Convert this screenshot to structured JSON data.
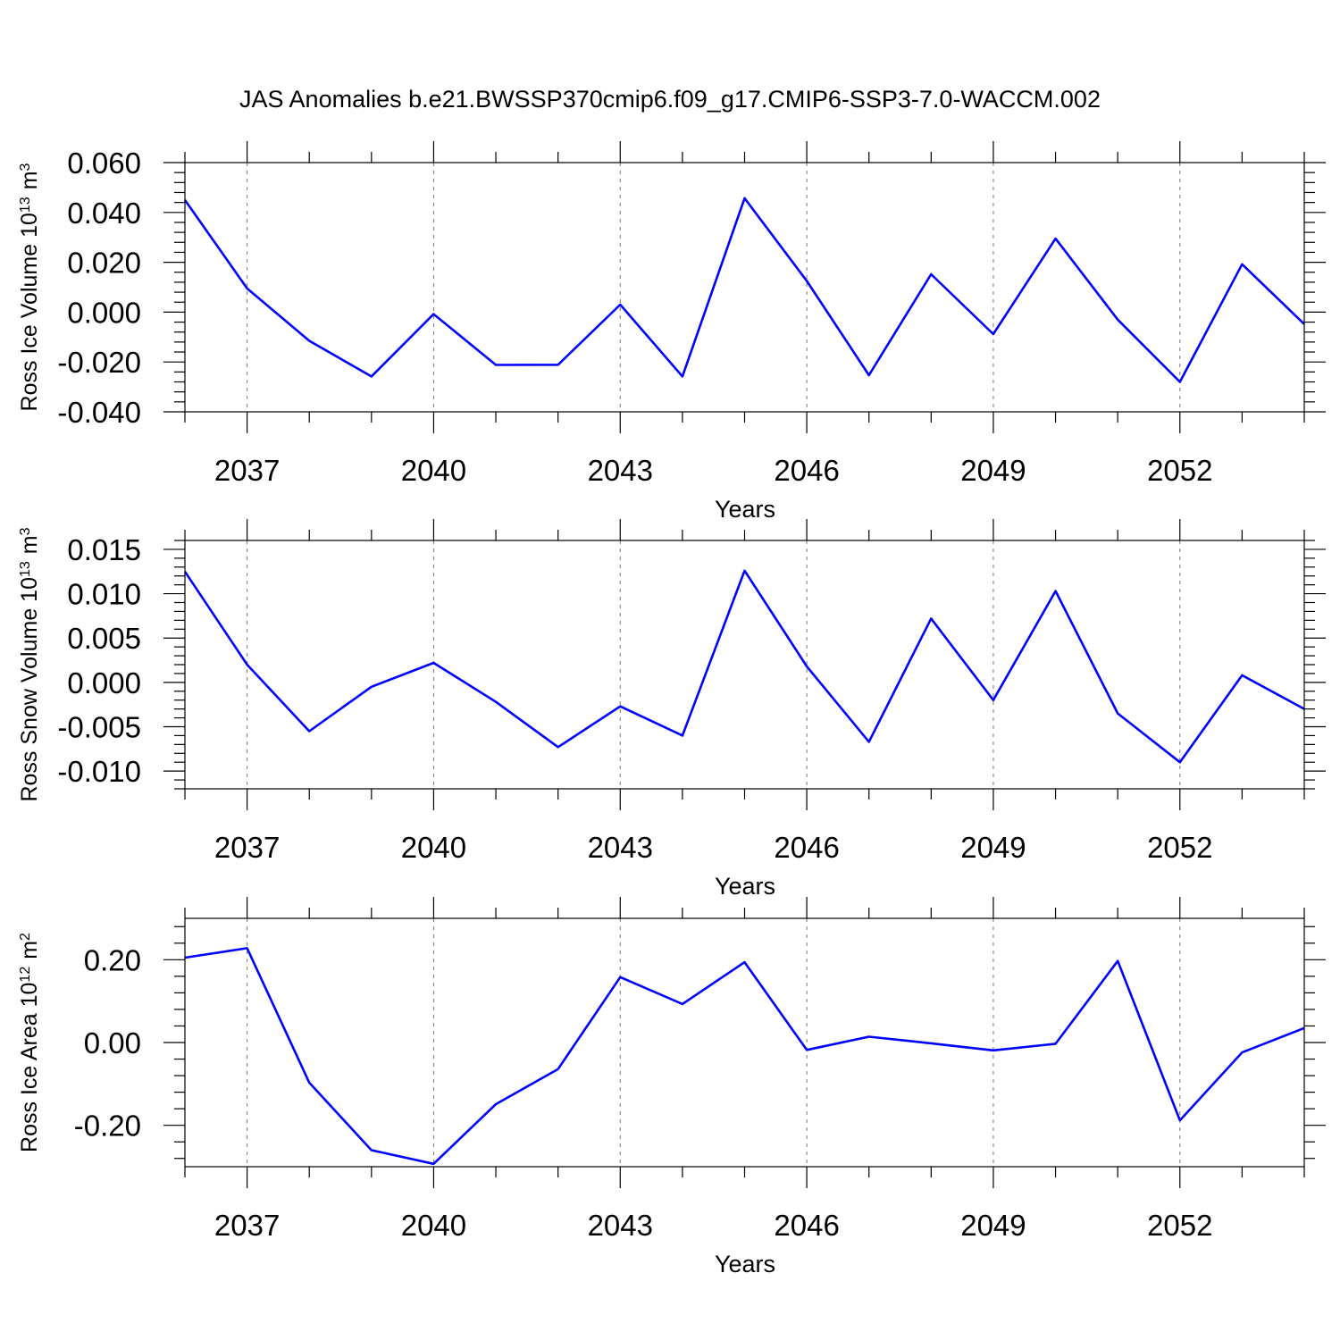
{
  "title": "JAS Anomalies b.e21.BWSSP370cmip6.f09_g17.CMIP6-SSP3-7.0-WACCM.002",
  "chart_data": [
    {
      "type": "line",
      "ylabel": "Ross Ice Volume 10",
      "ylabel_sup": "13",
      "ylabel_unit": "m",
      "ylabel_unit_sup": "3",
      "xlabel": "Years",
      "x": [
        2036,
        2037,
        2038,
        2039,
        2040,
        2041,
        2042,
        2043,
        2044,
        2045,
        2046,
        2047,
        2048,
        2049,
        2050,
        2051,
        2052,
        2053,
        2054
      ],
      "xlim": [
        2036,
        2054
      ],
      "xticks": [
        "2037",
        "2040",
        "2043",
        "2046",
        "2049",
        "2052"
      ],
      "ylim": [
        -0.04,
        0.06
      ],
      "yticks": [
        "0.060",
        "0.040",
        "0.020",
        "0.000",
        "-0.020",
        "-0.040"
      ],
      "color": "#0000ff",
      "series": [
        {
          "values": [
            0.045,
            0.0095,
            -0.0115,
            -0.0258,
            -0.0008,
            -0.0212,
            -0.0211,
            0.003,
            -0.0258,
            0.0457,
            0.0125,
            -0.0253,
            0.0152,
            -0.0088,
            0.0295,
            -0.003,
            -0.028,
            0.0192,
            -0.0048
          ]
        }
      ]
    },
    {
      "type": "line",
      "ylabel": "Ross Snow Volume 10",
      "ylabel_sup": "13",
      "ylabel_unit": "m",
      "ylabel_unit_sup": "3",
      "xlabel": "Years",
      "x": [
        2036,
        2037,
        2038,
        2039,
        2040,
        2041,
        2042,
        2043,
        2044,
        2045,
        2046,
        2047,
        2048,
        2049,
        2050,
        2051,
        2052,
        2053,
        2054
      ],
      "xlim": [
        2036,
        2054
      ],
      "xticks": [
        "2037",
        "2040",
        "2043",
        "2046",
        "2049",
        "2052"
      ],
      "ylim": [
        -0.012,
        0.016
      ],
      "yticks": [
        "0.015",
        "0.010",
        "0.005",
        "0.000",
        "-0.005",
        "-0.010"
      ],
      "color": "#0000ff",
      "series": [
        {
          "values": [
            0.0125,
            0.002,
            -0.0055,
            -0.0005,
            0.0022,
            -0.0022,
            -0.0073,
            -0.0027,
            -0.006,
            0.0126,
            0.0018,
            -0.0067,
            0.0072,
            -0.002,
            0.0103,
            -0.0035,
            -0.009,
            0.0008,
            -0.003
          ]
        }
      ]
    },
    {
      "type": "line",
      "ylabel": "Ross Ice Area 10",
      "ylabel_sup": "12",
      "ylabel_unit": "m",
      "ylabel_unit_sup": "2",
      "xlabel": "Years",
      "x": [
        2036,
        2037,
        2038,
        2039,
        2040,
        2041,
        2042,
        2043,
        2044,
        2045,
        2046,
        2047,
        2048,
        2049,
        2050,
        2051,
        2052,
        2053,
        2054
      ],
      "xlim": [
        2036,
        2054
      ],
      "xticks": [
        "2037",
        "2040",
        "2043",
        "2046",
        "2049",
        "2052"
      ],
      "ylim": [
        -0.3,
        0.3
      ],
      "yticks": [
        "0.20",
        "0.00",
        "-0.20"
      ],
      "color": "#0000ff",
      "series": [
        {
          "values": [
            0.205,
            0.228,
            -0.097,
            -0.26,
            -0.293,
            -0.149,
            -0.064,
            0.158,
            0.093,
            0.194,
            -0.018,
            0.014,
            -0.002,
            -0.019,
            -0.003,
            0.197,
            -0.188,
            -0.024,
            0.035
          ]
        }
      ]
    }
  ]
}
